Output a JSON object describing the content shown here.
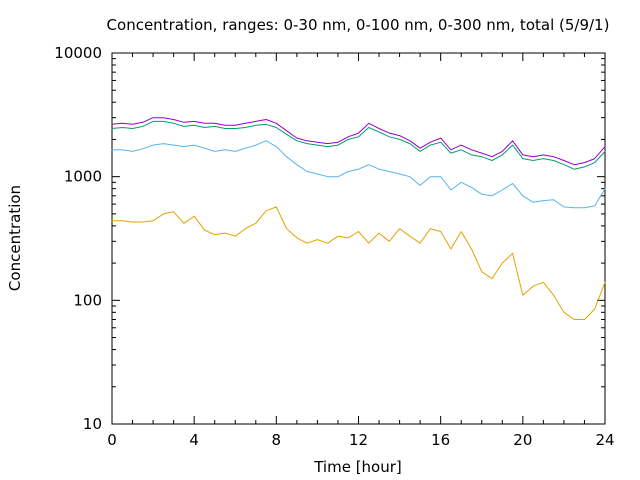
{
  "chart_data": {
    "type": "line",
    "title": "Concentration, ranges: 0-30 nm, 0-100 nm, 0-300 nm, total (5/9/1)",
    "xlabel": "Time [hour]",
    "ylabel": "Concentration",
    "xlim": [
      0,
      24
    ],
    "ylim": [
      10,
      10000
    ],
    "yscale": "log",
    "grid": false,
    "legend": "none",
    "x_ticks": [
      0,
      4,
      8,
      12,
      16,
      20,
      24
    ],
    "x_tick_labels": [
      "0",
      "4",
      "8",
      "12",
      "16",
      "20",
      "24"
    ],
    "y_ticks": [
      10,
      100,
      1000,
      10000
    ],
    "y_tick_labels": [
      "10",
      "100",
      "1000",
      "10000"
    ],
    "series": [
      {
        "color": "#e6a100",
        "points": [
          [
            0,
            440
          ],
          [
            0.5,
            440
          ],
          [
            1,
            430
          ],
          [
            1.5,
            430
          ],
          [
            2,
            440
          ],
          [
            2.5,
            500
          ],
          [
            3,
            520
          ],
          [
            3.5,
            420
          ],
          [
            4,
            480
          ],
          [
            4.5,
            370
          ],
          [
            5,
            340
          ],
          [
            5.5,
            350
          ],
          [
            6,
            330
          ],
          [
            6.5,
            380
          ],
          [
            7,
            420
          ],
          [
            7.5,
            530
          ],
          [
            8,
            570
          ],
          [
            8.5,
            380
          ],
          [
            9,
            320
          ],
          [
            9.5,
            290
          ],
          [
            10,
            310
          ],
          [
            10.5,
            290
          ],
          [
            11,
            330
          ],
          [
            11.5,
            320
          ],
          [
            12,
            360
          ],
          [
            12.5,
            290
          ],
          [
            13,
            350
          ],
          [
            13.5,
            300
          ],
          [
            14,
            380
          ],
          [
            14.5,
            330
          ],
          [
            15,
            290
          ],
          [
            15.5,
            380
          ],
          [
            16,
            360
          ],
          [
            16.5,
            260
          ],
          [
            17,
            360
          ],
          [
            17.5,
            260
          ],
          [
            18,
            170
          ],
          [
            18.5,
            150
          ],
          [
            19,
            200
          ],
          [
            19.5,
            240
          ],
          [
            20,
            110
          ],
          [
            20.5,
            130
          ],
          [
            21,
            140
          ],
          [
            21.5,
            110
          ],
          [
            22,
            80
          ],
          [
            22.5,
            70
          ],
          [
            23,
            70
          ],
          [
            23.5,
            85
          ],
          [
            24,
            140
          ]
        ]
      },
      {
        "color": "#56b4e9",
        "points": [
          [
            0,
            1650
          ],
          [
            0.5,
            1650
          ],
          [
            1,
            1600
          ],
          [
            1.5,
            1680
          ],
          [
            2,
            1800
          ],
          [
            2.5,
            1850
          ],
          [
            3,
            1800
          ],
          [
            3.5,
            1750
          ],
          [
            4,
            1800
          ],
          [
            4.5,
            1700
          ],
          [
            5,
            1600
          ],
          [
            5.5,
            1650
          ],
          [
            6,
            1600
          ],
          [
            6.5,
            1700
          ],
          [
            7,
            1800
          ],
          [
            7.5,
            1950
          ],
          [
            8,
            1750
          ],
          [
            8.5,
            1450
          ],
          [
            9,
            1250
          ],
          [
            9.5,
            1100
          ],
          [
            10,
            1050
          ],
          [
            10.5,
            1000
          ],
          [
            11,
            1000
          ],
          [
            11.5,
            1100
          ],
          [
            12,
            1150
          ],
          [
            12.5,
            1250
          ],
          [
            13,
            1150
          ],
          [
            13.5,
            1100
          ],
          [
            14,
            1050
          ],
          [
            14.5,
            1000
          ],
          [
            15,
            850
          ],
          [
            15.5,
            1000
          ],
          [
            16,
            1000
          ],
          [
            16.5,
            780
          ],
          [
            17,
            900
          ],
          [
            17.5,
            820
          ],
          [
            18,
            720
          ],
          [
            18.5,
            700
          ],
          [
            19,
            780
          ],
          [
            19.5,
            880
          ],
          [
            20,
            700
          ],
          [
            20.5,
            620
          ],
          [
            21,
            640
          ],
          [
            21.5,
            650
          ],
          [
            22,
            570
          ],
          [
            22.5,
            560
          ],
          [
            23,
            560
          ],
          [
            23.5,
            580
          ],
          [
            24,
            800
          ]
        ]
      },
      {
        "color": "#009e73",
        "points": [
          [
            0,
            2450
          ],
          [
            0.5,
            2500
          ],
          [
            1,
            2450
          ],
          [
            1.5,
            2550
          ],
          [
            2,
            2800
          ],
          [
            2.5,
            2800
          ],
          [
            3,
            2700
          ],
          [
            3.5,
            2550
          ],
          [
            4,
            2600
          ],
          [
            4.5,
            2500
          ],
          [
            5,
            2550
          ],
          [
            5.5,
            2450
          ],
          [
            6,
            2450
          ],
          [
            6.5,
            2500
          ],
          [
            7,
            2600
          ],
          [
            7.5,
            2650
          ],
          [
            8,
            2500
          ],
          [
            8.5,
            2200
          ],
          [
            9,
            1950
          ],
          [
            9.5,
            1850
          ],
          [
            10,
            1800
          ],
          [
            10.5,
            1750
          ],
          [
            11,
            1800
          ],
          [
            11.5,
            2000
          ],
          [
            12,
            2100
          ],
          [
            12.5,
            2500
          ],
          [
            13,
            2300
          ],
          [
            13.5,
            2100
          ],
          [
            14,
            2000
          ],
          [
            14.5,
            1850
          ],
          [
            15,
            1600
          ],
          [
            15.5,
            1800
          ],
          [
            16,
            1900
          ],
          [
            16.5,
            1550
          ],
          [
            17,
            1650
          ],
          [
            17.5,
            1500
          ],
          [
            18,
            1450
          ],
          [
            18.5,
            1350
          ],
          [
            19,
            1500
          ],
          [
            19.5,
            1800
          ],
          [
            20,
            1400
          ],
          [
            20.5,
            1350
          ],
          [
            21,
            1400
          ],
          [
            21.5,
            1350
          ],
          [
            22,
            1250
          ],
          [
            22.5,
            1150
          ],
          [
            23,
            1200
          ],
          [
            23.5,
            1300
          ],
          [
            24,
            1600
          ]
        ]
      },
      {
        "color": "#9400d3",
        "points": [
          [
            0,
            2650
          ],
          [
            0.5,
            2700
          ],
          [
            1,
            2650
          ],
          [
            1.5,
            2750
          ],
          [
            2,
            3000
          ],
          [
            2.5,
            3000
          ],
          [
            3,
            2900
          ],
          [
            3.5,
            2750
          ],
          [
            4,
            2800
          ],
          [
            4.5,
            2700
          ],
          [
            5,
            2700
          ],
          [
            5.5,
            2600
          ],
          [
            6,
            2600
          ],
          [
            6.5,
            2700
          ],
          [
            7,
            2800
          ],
          [
            7.5,
            2900
          ],
          [
            8,
            2700
          ],
          [
            8.5,
            2350
          ],
          [
            9,
            2050
          ],
          [
            9.5,
            1950
          ],
          [
            10,
            1900
          ],
          [
            10.5,
            1850
          ],
          [
            11,
            1900
          ],
          [
            11.5,
            2100
          ],
          [
            12,
            2250
          ],
          [
            12.5,
            2700
          ],
          [
            13,
            2450
          ],
          [
            13.5,
            2250
          ],
          [
            14,
            2150
          ],
          [
            14.5,
            1950
          ],
          [
            15,
            1700
          ],
          [
            15.5,
            1900
          ],
          [
            16,
            2050
          ],
          [
            16.5,
            1650
          ],
          [
            17,
            1800
          ],
          [
            17.5,
            1650
          ],
          [
            18,
            1550
          ],
          [
            18.5,
            1450
          ],
          [
            19,
            1600
          ],
          [
            19.5,
            1950
          ],
          [
            20,
            1500
          ],
          [
            20.5,
            1450
          ],
          [
            21,
            1500
          ],
          [
            21.5,
            1450
          ],
          [
            22,
            1350
          ],
          [
            22.5,
            1250
          ],
          [
            23,
            1300
          ],
          [
            23.5,
            1400
          ],
          [
            24,
            1750
          ]
        ]
      }
    ]
  }
}
